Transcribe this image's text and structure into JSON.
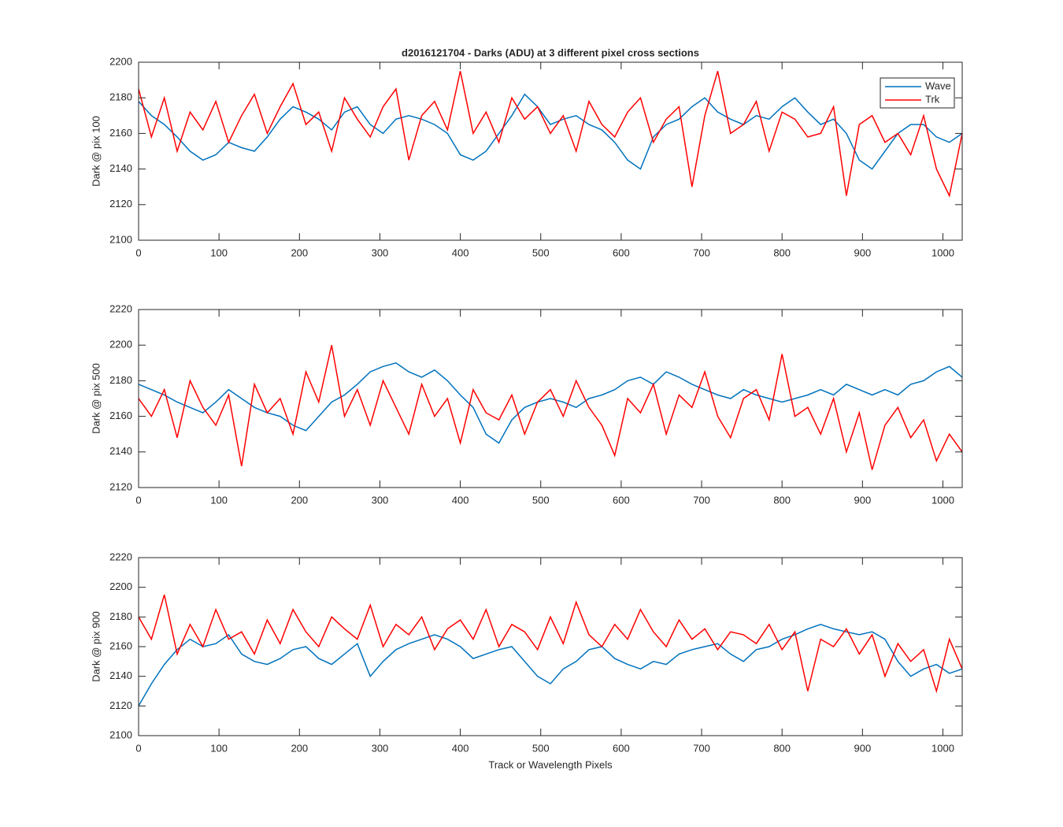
{
  "chart_data": [
    {
      "type": "line",
      "title": "d2016121704 - Darks (ADU) at 3 different pixel cross sections",
      "ylabel": "Dark @ pix 100",
      "x": [
        0,
        16,
        32,
        48,
        64,
        80,
        96,
        112,
        128,
        144,
        160,
        176,
        192,
        208,
        224,
        240,
        256,
        272,
        288,
        304,
        320,
        336,
        352,
        368,
        384,
        400,
        416,
        432,
        448,
        464,
        480,
        496,
        512,
        528,
        544,
        560,
        576,
        592,
        608,
        624,
        640,
        656,
        672,
        688,
        704,
        720,
        736,
        752,
        768,
        784,
        800,
        816,
        832,
        848,
        864,
        880,
        896,
        912,
        928,
        944,
        960,
        976,
        992,
        1008,
        1024
      ],
      "xlim": [
        0,
        1024
      ],
      "xticks": [
        0,
        100,
        200,
        300,
        400,
        500,
        600,
        700,
        800,
        900,
        1000
      ],
      "ylim": [
        2100,
        2200
      ],
      "yticks": [
        2100,
        2120,
        2140,
        2160,
        2180,
        2200
      ],
      "legend": "northeast",
      "series": [
        {
          "name": "Wave",
          "color": "#0072bd",
          "values": [
            2178,
            2170,
            2165,
            2158,
            2150,
            2145,
            2148,
            2155,
            2152,
            2150,
            2158,
            2168,
            2175,
            2172,
            2168,
            2162,
            2172,
            2175,
            2165,
            2160,
            2168,
            2170,
            2168,
            2165,
            2160,
            2148,
            2145,
            2150,
            2160,
            2170,
            2182,
            2175,
            2165,
            2168,
            2170,
            2165,
            2162,
            2155,
            2145,
            2140,
            2158,
            2165,
            2168,
            2175,
            2180,
            2172,
            2168,
            2165,
            2170,
            2168,
            2175,
            2180,
            2172,
            2165,
            2168,
            2160,
            2145,
            2140,
            2150,
            2160,
            2165,
            2165,
            2158,
            2155,
            2160
          ]
        },
        {
          "name": "Trk",
          "color": "#ff0000",
          "values": [
            2185,
            2158,
            2180,
            2150,
            2172,
            2162,
            2178,
            2155,
            2170,
            2182,
            2160,
            2175,
            2188,
            2165,
            2172,
            2150,
            2180,
            2168,
            2158,
            2175,
            2185,
            2145,
            2170,
            2178,
            2162,
            2195,
            2160,
            2172,
            2155,
            2180,
            2168,
            2175,
            2160,
            2170,
            2150,
            2178,
            2165,
            2158,
            2172,
            2180,
            2155,
            2168,
            2175,
            2130,
            2170,
            2195,
            2160,
            2165,
            2178,
            2150,
            2172,
            2168,
            2158,
            2160,
            2175,
            2125,
            2165,
            2170,
            2155,
            2160,
            2148,
            2170,
            2140,
            2125,
            2160
          ]
        }
      ]
    },
    {
      "type": "line",
      "ylabel": "Dark @ pix 500",
      "x": [
        0,
        16,
        32,
        48,
        64,
        80,
        96,
        112,
        128,
        144,
        160,
        176,
        192,
        208,
        224,
        240,
        256,
        272,
        288,
        304,
        320,
        336,
        352,
        368,
        384,
        400,
        416,
        432,
        448,
        464,
        480,
        496,
        512,
        528,
        544,
        560,
        576,
        592,
        608,
        624,
        640,
        656,
        672,
        688,
        704,
        720,
        736,
        752,
        768,
        784,
        800,
        816,
        832,
        848,
        864,
        880,
        896,
        912,
        928,
        944,
        960,
        976,
        992,
        1008,
        1024
      ],
      "xlim": [
        0,
        1024
      ],
      "xticks": [
        0,
        100,
        200,
        300,
        400,
        500,
        600,
        700,
        800,
        900,
        1000
      ],
      "ylim": [
        2120,
        2220
      ],
      "yticks": [
        2120,
        2140,
        2160,
        2180,
        2200,
        2220
      ],
      "series": [
        {
          "color": "#0072bd",
          "values": [
            2178,
            2175,
            2172,
            2168,
            2165,
            2162,
            2168,
            2175,
            2170,
            2165,
            2162,
            2160,
            2155,
            2152,
            2160,
            2168,
            2172,
            2178,
            2185,
            2188,
            2190,
            2185,
            2182,
            2186,
            2180,
            2172,
            2165,
            2150,
            2145,
            2158,
            2165,
            2168,
            2170,
            2168,
            2165,
            2170,
            2172,
            2175,
            2180,
            2182,
            2178,
            2185,
            2182,
            2178,
            2175,
            2172,
            2170,
            2175,
            2172,
            2170,
            2168,
            2170,
            2172,
            2175,
            2172,
            2178,
            2175,
            2172,
            2175,
            2172,
            2178,
            2180,
            2185,
            2188,
            2182
          ]
        },
        {
          "color": "#ff0000",
          "values": [
            2170,
            2160,
            2175,
            2148,
            2180,
            2165,
            2155,
            2172,
            2132,
            2178,
            2162,
            2170,
            2150,
            2185,
            2168,
            2200,
            2160,
            2175,
            2155,
            2180,
            2165,
            2150,
            2178,
            2160,
            2170,
            2145,
            2175,
            2162,
            2158,
            2172,
            2150,
            2168,
            2175,
            2160,
            2180,
            2165,
            2155,
            2138,
            2170,
            2162,
            2178,
            2150,
            2172,
            2165,
            2185,
            2160,
            2148,
            2170,
            2175,
            2158,
            2195,
            2160,
            2165,
            2150,
            2170,
            2140,
            2162,
            2130,
            2155,
            2165,
            2148,
            2158,
            2135,
            2150,
            2140
          ]
        }
      ]
    },
    {
      "type": "line",
      "ylabel": "Dark @ pix 900",
      "xlabel": "Track or Wavelength Pixels",
      "x": [
        0,
        16,
        32,
        48,
        64,
        80,
        96,
        112,
        128,
        144,
        160,
        176,
        192,
        208,
        224,
        240,
        256,
        272,
        288,
        304,
        320,
        336,
        352,
        368,
        384,
        400,
        416,
        432,
        448,
        464,
        480,
        496,
        512,
        528,
        544,
        560,
        576,
        592,
        608,
        624,
        640,
        656,
        672,
        688,
        704,
        720,
        736,
        752,
        768,
        784,
        800,
        816,
        832,
        848,
        864,
        880,
        896,
        912,
        928,
        944,
        960,
        976,
        992,
        1008,
        1024
      ],
      "xlim": [
        0,
        1024
      ],
      "xticks": [
        0,
        100,
        200,
        300,
        400,
        500,
        600,
        700,
        800,
        900,
        1000
      ],
      "ylim": [
        2100,
        2220
      ],
      "yticks": [
        2100,
        2120,
        2140,
        2160,
        2180,
        2200,
        2220
      ],
      "series": [
        {
          "color": "#0072bd",
          "values": [
            2120,
            2135,
            2148,
            2158,
            2165,
            2160,
            2162,
            2168,
            2155,
            2150,
            2148,
            2152,
            2158,
            2160,
            2152,
            2148,
            2155,
            2162,
            2140,
            2150,
            2158,
            2162,
            2165,
            2168,
            2165,
            2160,
            2152,
            2155,
            2158,
            2160,
            2150,
            2140,
            2135,
            2145,
            2150,
            2158,
            2160,
            2152,
            2148,
            2145,
            2150,
            2148,
            2155,
            2158,
            2160,
            2162,
            2155,
            2150,
            2158,
            2160,
            2165,
            2168,
            2172,
            2175,
            2172,
            2170,
            2168,
            2170,
            2165,
            2150,
            2140,
            2145,
            2148,
            2142,
            2145
          ]
        },
        {
          "color": "#ff0000",
          "values": [
            2180,
            2165,
            2195,
            2155,
            2175,
            2160,
            2185,
            2165,
            2170,
            2155,
            2178,
            2162,
            2185,
            2170,
            2160,
            2180,
            2172,
            2165,
            2188,
            2160,
            2175,
            2168,
            2180,
            2158,
            2172,
            2178,
            2165,
            2185,
            2160,
            2175,
            2170,
            2158,
            2180,
            2162,
            2190,
            2168,
            2160,
            2175,
            2165,
            2185,
            2170,
            2160,
            2178,
            2165,
            2172,
            2158,
            2170,
            2168,
            2162,
            2175,
            2158,
            2170,
            2130,
            2165,
            2160,
            2172,
            2155,
            2168,
            2140,
            2162,
            2150,
            2158,
            2130,
            2165,
            2145
          ]
        }
      ]
    }
  ]
}
